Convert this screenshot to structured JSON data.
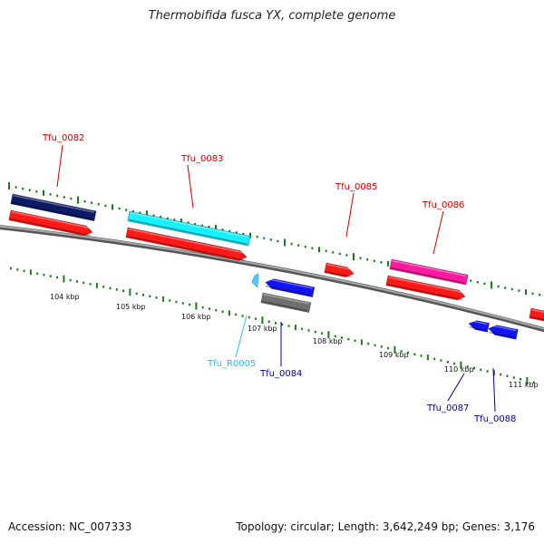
{
  "title": "Thermobifida fusca YX, complete genome",
  "footer": {
    "accession": "Accession: NC_007333",
    "info": "Topology: circular; Length: 3,642,249 bp; Genes: 3,176"
  },
  "colors": {
    "backbone": "#8a8a8a",
    "tick": "#1e7a1e",
    "label_forward": "#cc0000",
    "label_reverse": "#00009a",
    "label_rna": "#33bbdd",
    "cds": "#ff1a1a",
    "gene_navy": "#0d1a66",
    "gene_cyan": "#19f0ff",
    "gene_magenta": "#ff1aa0",
    "gene_blue": "#1414f0",
    "gene_gray": "#707070",
    "rna": "#55ccff"
  },
  "scale_labels": [
    "104 kbp",
    "105 kbp",
    "106 kbp",
    "107 kbp",
    "108 kbp",
    "109 kbp",
    "110 kbp",
    "111 kbp"
  ],
  "gene_labels": [
    {
      "name": "Tfu_0082",
      "type": "forward"
    },
    {
      "name": "Tfu_0083",
      "type": "forward"
    },
    {
      "name": "Tfu_0085",
      "type": "forward"
    },
    {
      "name": "Tfu_0086",
      "type": "forward"
    },
    {
      "name": "Tfu_R0005",
      "type": "rna"
    },
    {
      "name": "Tfu_0084",
      "type": "reverse"
    },
    {
      "name": "Tfu_0087",
      "type": "reverse"
    },
    {
      "name": "Tfu_0088",
      "type": "reverse"
    }
  ]
}
